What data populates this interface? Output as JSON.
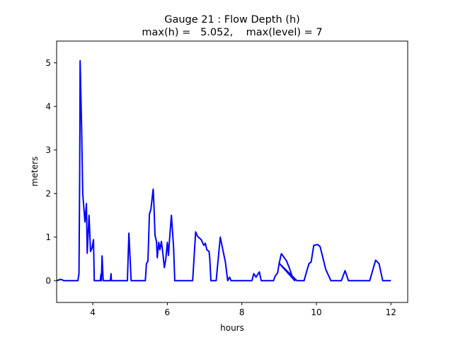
{
  "chart_data": {
    "type": "line",
    "title": "Gauge 21 : Flow Depth (h)",
    "subtitle": "max(h) =   5.052,    max(level) = 7",
    "xlabel": "hours",
    "ylabel": "meters",
    "xlim": [
      3.03,
      12.45
    ],
    "ylim": [
      -0.5,
      5.5
    ],
    "xticks": [
      4,
      6,
      8,
      10,
      12
    ],
    "xtick_labels": [
      "4",
      "6",
      "8",
      "10",
      "12"
    ],
    "yticks": [
      0,
      1,
      2,
      3,
      4,
      5
    ],
    "ytick_labels": [
      "0",
      "1",
      "2",
      "3",
      "4",
      "5"
    ],
    "grid": false,
    "series": [
      {
        "name": "h",
        "color": "#0000ff",
        "x": [
          3.03,
          3.1,
          3.13,
          3.18,
          3.22,
          3.6,
          3.63,
          3.65,
          3.66,
          3.7,
          3.73,
          3.79,
          3.83,
          3.85,
          3.9,
          3.94,
          3.98,
          4.02,
          4.04,
          4.2,
          4.22,
          4.23,
          4.25,
          4.28,
          4.47,
          4.49,
          4.5,
          4.93,
          4.97,
          5.03,
          5.41,
          5.44,
          5.48,
          5.52,
          5.56,
          5.62,
          5.64,
          5.67,
          5.71,
          5.73,
          5.77,
          5.8,
          5.84,
          5.88,
          5.92,
          5.96,
          6.0,
          6.03,
          6.07,
          6.11,
          6.17,
          6.2,
          6.68,
          6.76,
          6.81,
          6.91,
          6.98,
          7.02,
          7.06,
          7.12,
          7.14,
          7.17,
          7.31,
          7.42,
          7.56,
          7.62,
          7.67,
          7.71,
          8.27,
          8.32,
          8.38,
          8.47,
          8.52,
          8.85,
          8.89,
          8.96,
          9.0,
          9.06,
          9.12,
          9.2,
          9.27,
          9.35,
          9.42,
          9.0,
          9.48,
          9.67,
          9.72,
          9.8,
          9.86,
          9.93,
          10.03,
          10.1,
          10.25,
          10.39,
          10.67,
          10.77,
          10.86,
          11.43,
          11.59,
          11.68,
          11.78,
          12.0
        ],
        "y": [
          0,
          0.02,
          0.03,
          0.02,
          0,
          0,
          0.16,
          2.5,
          5.05,
          3.5,
          2.0,
          1.35,
          1.77,
          0.63,
          1.5,
          0.67,
          0.75,
          0.94,
          0,
          0,
          0.15,
          0,
          0.57,
          0,
          0,
          0.16,
          0,
          0,
          1.09,
          0,
          0,
          0.39,
          0.45,
          1.53,
          1.64,
          2.1,
          1.77,
          1.04,
          0.9,
          0.53,
          0.88,
          0.71,
          0.9,
          0.63,
          0.3,
          0.5,
          0.88,
          0.58,
          1.07,
          1.5,
          0.75,
          0,
          0,
          1.12,
          1.02,
          0.94,
          0.81,
          0.86,
          0.71,
          0.67,
          0.5,
          0,
          0,
          1.0,
          0.42,
          0,
          0.08,
          0,
          0,
          0.16,
          0.08,
          0.2,
          0,
          0,
          0.1,
          0.18,
          0.39,
          0.62,
          0.55,
          0.45,
          0.3,
          0.1,
          0,
          0.4,
          0,
          0,
          0.16,
          0.39,
          0.43,
          0.81,
          0.83,
          0.78,
          0.26,
          0,
          0,
          0.23,
          0,
          0,
          0.47,
          0.39,
          0,
          0
        ]
      }
    ]
  }
}
